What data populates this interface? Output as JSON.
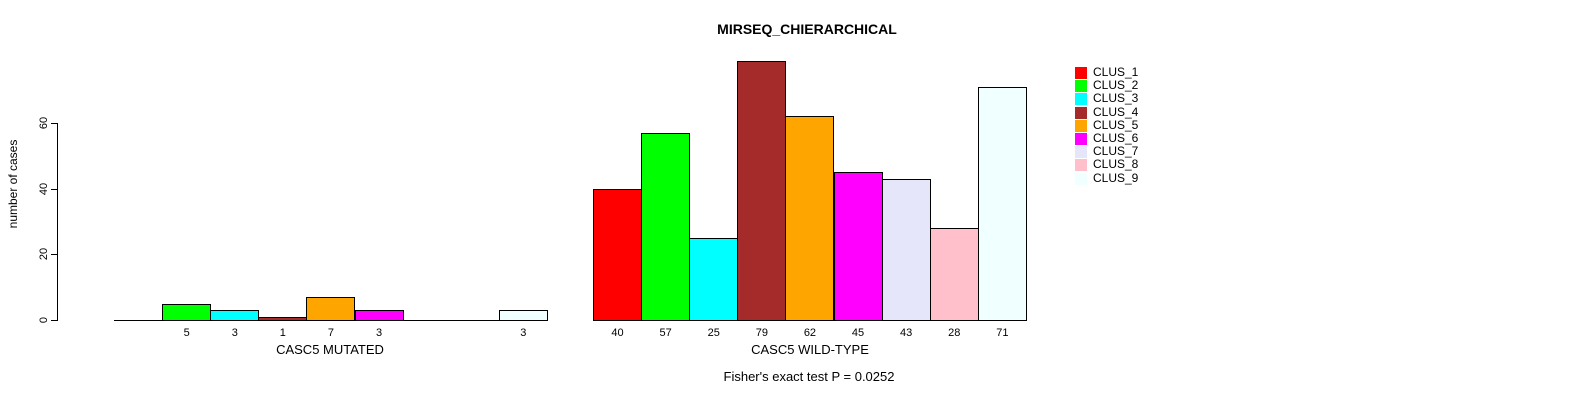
{
  "title": "MIRSEQ_CHIERARCHICAL",
  "y_axis": {
    "label": "number of cases",
    "ticks": [
      0,
      20,
      40,
      60
    ]
  },
  "footer": "Fisher's exact test P = 0.0252",
  "legend": {
    "position": "right",
    "items": [
      {
        "label": "CLUS_1",
        "color": "#FF0000"
      },
      {
        "label": "CLUS_2",
        "color": "#00FF00"
      },
      {
        "label": "CLUS_3",
        "color": "#00FFFF"
      },
      {
        "label": "CLUS_4",
        "color": "#A52A2A"
      },
      {
        "label": "CLUS_5",
        "color": "#FFA500"
      },
      {
        "label": "CLUS_6",
        "color": "#FF00FF"
      },
      {
        "label": "CLUS_7",
        "color": "#E6E6FA"
      },
      {
        "label": "CLUS_8",
        "color": "#FFC0CB"
      },
      {
        "label": "CLUS_9",
        "color": "#F0FFFF"
      }
    ]
  },
  "chart_data": {
    "type": "bar",
    "title": "MIRSEQ_CHIERARCHICAL",
    "xlabel": "",
    "ylabel": "number of cases",
    "ylim": [
      0,
      79
    ],
    "yticks": [
      0,
      20,
      40,
      60
    ],
    "grid": false,
    "legend_position": "right",
    "categories": [
      "CLUS_1",
      "CLUS_2",
      "CLUS_3",
      "CLUS_4",
      "CLUS_5",
      "CLUS_6",
      "CLUS_7",
      "CLUS_8",
      "CLUS_9"
    ],
    "series_colors": [
      "#FF0000",
      "#00FF00",
      "#00FFFF",
      "#A52A2A",
      "#FFA500",
      "#FF00FF",
      "#E6E6FA",
      "#FFC0CB",
      "#F0FFFF"
    ],
    "groups": [
      {
        "label": "CASC5 MUTATED",
        "values": [
          0,
          5,
          3,
          1,
          7,
          3,
          0,
          0,
          3
        ]
      },
      {
        "label": "CASC5 WILD-TYPE",
        "values": [
          40,
          57,
          25,
          79,
          62,
          45,
          43,
          28,
          71
        ]
      }
    ],
    "bar_value_labels_shown_for_zero": false,
    "annotation": "Fisher's exact test P = 0.0252"
  }
}
